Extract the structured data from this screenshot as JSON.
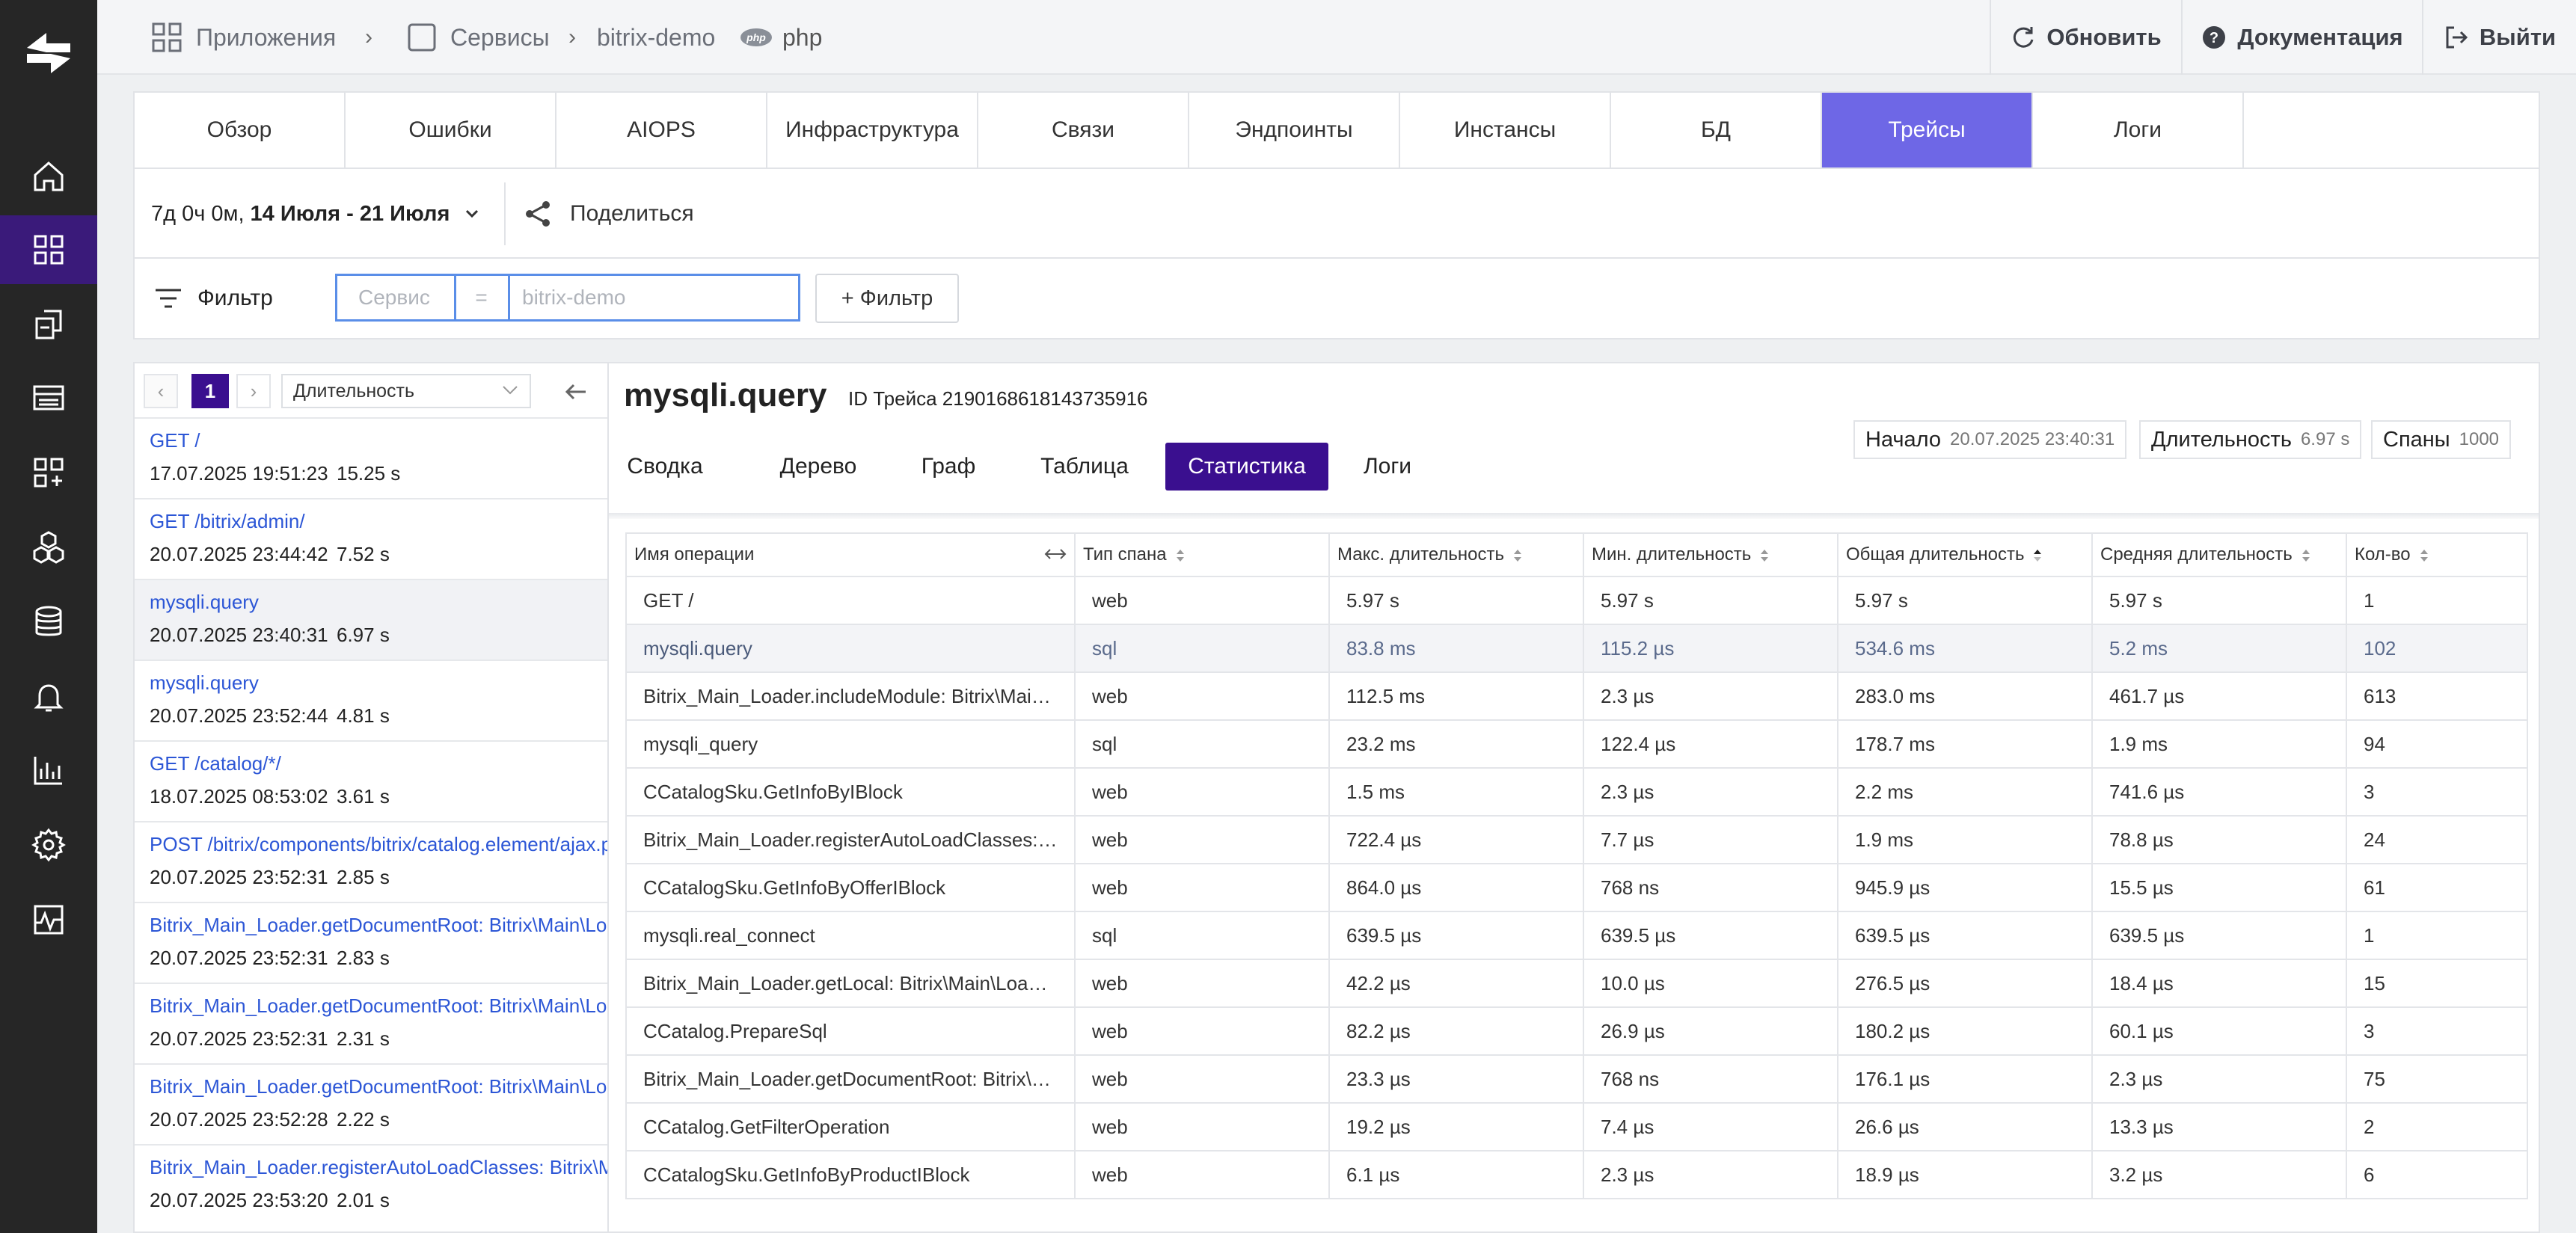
{
  "breadcrumb": {
    "apps": "Приложения",
    "services": "Сервисы",
    "service_name": "bitrix-demo",
    "php_badge": "php",
    "lang": "php"
  },
  "header_actions": {
    "refresh": "Обновить",
    "docs": "Документация",
    "logout": "Выйти"
  },
  "tabs": [
    "Обзор",
    "Ошибки",
    "AIOPS",
    "Инфраструктура",
    "Связи",
    "Эндпоинты",
    "Инстансы",
    "БД",
    "Трейсы",
    "Логи"
  ],
  "active_tab": "Трейсы",
  "time_range": {
    "duration": "7д 0ч 0м,",
    "dates": "14 Июля - 21 Июля"
  },
  "share_label": "Поделиться",
  "filter": {
    "label": "Фильтр",
    "key": "Сервис",
    "op": "=",
    "value": "bitrix-demo",
    "add_label": "+ Фильтр"
  },
  "list": {
    "prev": "‹",
    "page": "1",
    "next": "›",
    "sort": "Длительность",
    "items": [
      {
        "name": "GET /",
        "date": "17.07.2025 19:51:23",
        "duration": "15.25 s"
      },
      {
        "name": "GET /bitrix/admin/",
        "date": "20.07.2025 23:44:42",
        "duration": "7.52 s"
      },
      {
        "name": "mysqli.query",
        "date": "20.07.2025 23:40:31",
        "duration": "6.97 s"
      },
      {
        "name": "mysqli.query",
        "date": "20.07.2025 23:52:44",
        "duration": "4.81 s"
      },
      {
        "name": "GET /catalog/*/",
        "date": "18.07.2025 08:53:02",
        "duration": "3.61 s"
      },
      {
        "name": "POST /bitrix/components/bitrix/catalog.element/ajax.p",
        "date": "20.07.2025 23:52:31",
        "duration": "2.85 s"
      },
      {
        "name": "Bitrix_Main_Loader.getDocumentRoot: Bitrix\\Main\\Loa",
        "date": "20.07.2025 23:52:31",
        "duration": "2.83 s"
      },
      {
        "name": "Bitrix_Main_Loader.getDocumentRoot: Bitrix\\Main\\Loa",
        "date": "20.07.2025 23:52:31",
        "duration": "2.31 s"
      },
      {
        "name": "Bitrix_Main_Loader.getDocumentRoot: Bitrix\\Main\\Loa",
        "date": "20.07.2025 23:52:28",
        "duration": "2.22 s"
      },
      {
        "name": "Bitrix_Main_Loader.registerAutoLoadClasses: Bitrix\\Ma",
        "date": "20.07.2025 23:53:20",
        "duration": "2.01 s"
      }
    ]
  },
  "detail": {
    "title": "mysqli.query",
    "trace_id": "ID Трейса 2190168618143735916",
    "subtabs": [
      "Сводка",
      "Дерево",
      "Граф",
      "Таблица",
      "Статистика",
      "Логи"
    ],
    "active_subtab": "Статистика",
    "start_label": "Начало",
    "start_value": "20.07.2025 23:40:31",
    "duration_label": "Длительность",
    "duration_value": "6.97 s",
    "spans_label": "Спаны",
    "spans_value": "1000"
  },
  "table": {
    "headers": [
      "Имя операции",
      "Тип спана",
      "Макс. длительность",
      "Мин. длительность",
      "Общая длительность",
      "Средняя длительность",
      "Кол-во"
    ],
    "rows": [
      [
        "GET /",
        "web",
        "5.97 s",
        "5.97 s",
        "5.97 s",
        "5.97 s",
        "1"
      ],
      [
        "mysqli.query",
        "sql",
        "83.8 ms",
        "115.2 µs",
        "534.6 ms",
        "5.2 ms",
        "102"
      ],
      [
        "Bitrix_Main_Loader.includeModule: Bitrix\\Main\\Loader::includeModule",
        "web",
        "112.5 ms",
        "2.3 µs",
        "283.0 ms",
        "461.7 µs",
        "613"
      ],
      [
        "mysqli_query",
        "sql",
        "23.2 ms",
        "122.4 µs",
        "178.7 ms",
        "1.9 ms",
        "94"
      ],
      [
        "CCatalogSku.GetInfoByIBlock",
        "web",
        "1.5 ms",
        "2.3 µs",
        "2.2 ms",
        "741.6 µs",
        "3"
      ],
      [
        "Bitrix_Main_Loader.registerAutoLoadClasses: Bitrix\\Main\\Loader::registerAutoLoadClasses",
        "web",
        "722.4 µs",
        "7.7 µs",
        "1.9 ms",
        "78.8 µs",
        "24"
      ],
      [
        "CCatalogSku.GetInfoByOfferIBlock",
        "web",
        "864.0 µs",
        "768 ns",
        "945.9 µs",
        "15.5 µs",
        "61"
      ],
      [
        "mysqli.real_connect",
        "sql",
        "639.5 µs",
        "639.5 µs",
        "639.5 µs",
        "639.5 µs",
        "1"
      ],
      [
        "Bitrix_Main_Loader.getLocal: Bitrix\\Main\\Loader::getLocal",
        "web",
        "42.2 µs",
        "10.0 µs",
        "276.5 µs",
        "18.4 µs",
        "15"
      ],
      [
        "CCatalog.PrepareSql",
        "web",
        "82.2 µs",
        "26.9 µs",
        "180.2 µs",
        "60.1 µs",
        "3"
      ],
      [
        "Bitrix_Main_Loader.getDocumentRoot: Bitrix\\Main\\Loader::getDocumentRoot",
        "web",
        "23.3 µs",
        "768 ns",
        "176.1 µs",
        "2.3 µs",
        "75"
      ],
      [
        "CCatalog.GetFilterOperation",
        "web",
        "19.2 µs",
        "7.4 µs",
        "26.6 µs",
        "13.3 µs",
        "2"
      ],
      [
        "CCatalogSku.GetInfoByProductIBlock",
        "web",
        "6.1 µs",
        "2.3 µs",
        "18.9 µs",
        "3.2 µs",
        "6"
      ]
    ],
    "highlight_row": 1
  },
  "colors": {
    "sidebar_bg": "#262626",
    "sidebar_active": "#3a1a7a",
    "tab_active": "#6e67e6",
    "subtab_active": "#3a0f8f",
    "link": "#2c56d6"
  },
  "icons": {
    "sidebar": [
      "home-icon",
      "apps-icon",
      "services-icon",
      "dashboard-icon",
      "modules-icon",
      "hexagons-icon",
      "database-icon",
      "bell-icon",
      "bar-chart-icon",
      "gear-icon",
      "activity-icon"
    ]
  }
}
